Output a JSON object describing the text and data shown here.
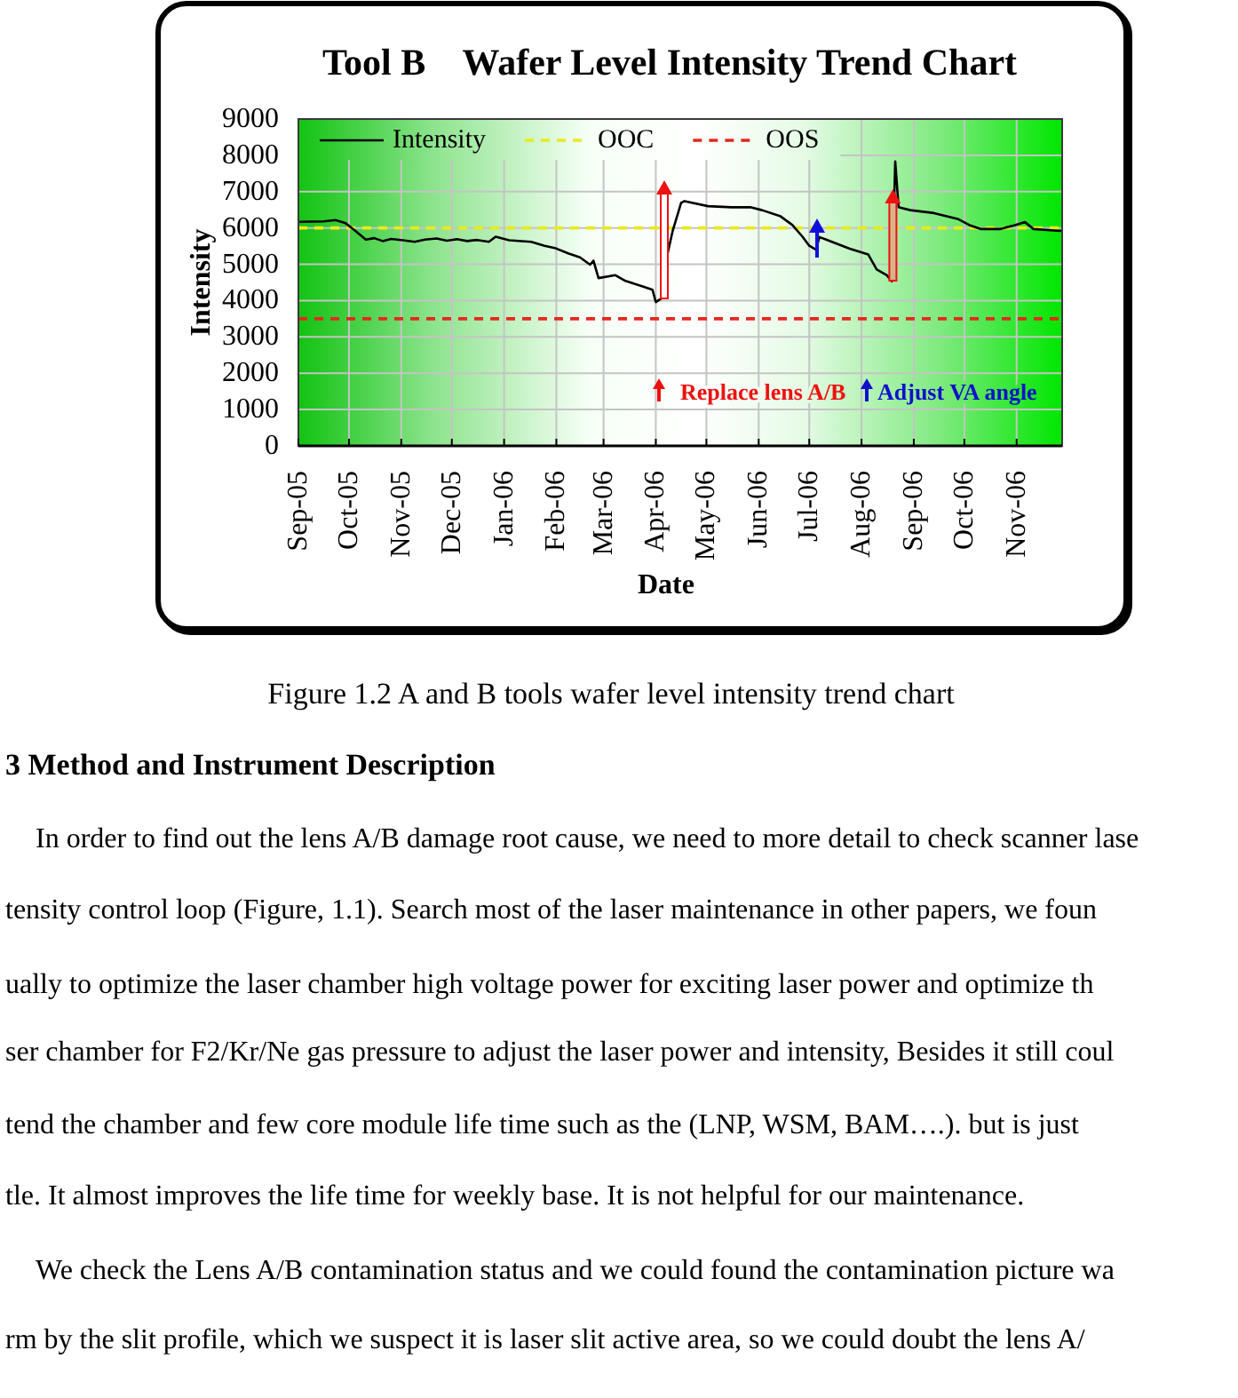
{
  "chart_data": {
    "type": "line",
    "title": "Tool B    Wafer Level Intensity Trend Chart",
    "xlabel": "Date",
    "ylabel": "Intensity",
    "xlim": [
      "2005-09-01",
      "2006-11-28"
    ],
    "xticks": [
      {
        "value": "2005-09-01",
        "label": "Sep-05"
      },
      {
        "value": "2005-10-01",
        "label": "Oct-05"
      },
      {
        "value": "2005-11-01",
        "label": "Nov-05"
      },
      {
        "value": "2005-12-01",
        "label": "Dec-05"
      },
      {
        "value": "2006-01-01",
        "label": "Jan-06"
      },
      {
        "value": "2006-02-01",
        "label": "Feb-06"
      },
      {
        "value": "2006-03-01",
        "label": "Mar-06"
      },
      {
        "value": "2006-04-01",
        "label": "Apr-06"
      },
      {
        "value": "2006-05-01",
        "label": "May-06"
      },
      {
        "value": "2006-06-01",
        "label": "Jun-06"
      },
      {
        "value": "2006-07-01",
        "label": "Jul-06"
      },
      {
        "value": "2006-08-01",
        "label": "Aug-06"
      },
      {
        "value": "2006-09-01",
        "label": "Sep-06"
      },
      {
        "value": "2006-10-01",
        "label": "Oct-06"
      },
      {
        "value": "2006-11-01",
        "label": "Nov-06"
      }
    ],
    "ylim": [
      0,
      9000
    ],
    "yticks": [
      0,
      1000,
      2000,
      3000,
      4000,
      5000,
      6000,
      7000,
      8000,
      9000
    ],
    "series": [
      {
        "name": "Intensity",
        "color": "#000000",
        "x": [
          "2005-09-02",
          "2005-09-16",
          "2005-09-23",
          "2005-09-29",
          "2005-10-04",
          "2005-10-11",
          "2005-10-16",
          "2005-10-21",
          "2005-10-26",
          "2005-11-02",
          "2005-11-09",
          "2005-11-15",
          "2005-11-22",
          "2005-11-28",
          "2005-12-04",
          "2005-12-10",
          "2005-12-16",
          "2005-12-23",
          "2005-12-27",
          "2006-01-04",
          "2006-01-17",
          "2006-01-25",
          "2006-01-31",
          "2006-02-08",
          "2006-02-15",
          "2006-02-21",
          "2006-02-23",
          "2006-02-26",
          "2006-03-08",
          "2006-03-14",
          "2006-03-25",
          "2006-03-30",
          "2006-04-01",
          "2006-04-04",
          "2006-04-07",
          "2006-04-08",
          "2006-04-11",
          "2006-04-16",
          "2006-04-18",
          "2006-05-02",
          "2006-05-16",
          "2006-05-27",
          "2006-06-03",
          "2006-06-14",
          "2006-06-21",
          "2006-06-27",
          "2006-07-01",
          "2006-07-05",
          "2006-07-07",
          "2006-07-11",
          "2006-07-25",
          "2006-08-05",
          "2006-08-10",
          "2006-08-16",
          "2006-08-19",
          "2006-08-21",
          "2006-08-23",
          "2006-08-30",
          "2006-09-13",
          "2006-09-27",
          "2006-10-04",
          "2006-10-11",
          "2006-10-22",
          "2006-10-31",
          "2006-11-06",
          "2006-11-11",
          "2006-11-27"
        ],
        "values": [
          6170,
          6180,
          6220,
          6130,
          5950,
          5680,
          5720,
          5640,
          5700,
          5660,
          5620,
          5680,
          5710,
          5650,
          5690,
          5640,
          5670,
          5620,
          5760,
          5660,
          5620,
          5510,
          5450,
          5300,
          5190,
          4990,
          5100,
          4620,
          4700,
          4540,
          4380,
          4300,
          3960,
          4050,
          6100,
          5300,
          5920,
          6690,
          6740,
          6600,
          6570,
          6570,
          6490,
          6320,
          6080,
          5760,
          5510,
          5400,
          5750,
          5680,
          5430,
          5270,
          4860,
          4700,
          4530,
          7830,
          6570,
          6490,
          6410,
          6250,
          6080,
          5970,
          5970,
          6080,
          6160,
          5970,
          5920
        ]
      }
    ],
    "ref_lines": [
      {
        "axis": "y",
        "value": 6000,
        "label": "OOC",
        "color": "#eaea1a",
        "line_style": "dashed"
      },
      {
        "axis": "y",
        "value": 3500,
        "label": "OOS",
        "color": "#e5281e",
        "line_style": "dashed"
      }
    ],
    "grid": true,
    "legend": "top left",
    "annotations": [
      "Replace lens A/B",
      "Adjust VA angle",
      "Figure 1.2 A and B tools wafer level intensity trend chart",
      "3 Method and Instrument Description",
      "In order to find out the lens A/B damage root cause, we need to more detail to check scanner lase",
      "tensity control loop (Figure, 1.1). Search most of the laser maintenance in other papers, we foun",
      "ually to optimize the laser chamber high voltage power for exciting laser power and optimize th",
      "ser chamber for F2/Kr/Ne gas pressure to adjust the laser power and intensity, Besides it still coul",
      "tend the chamber and few core module life time such as the (LNP, WSM, BAM….). but is just",
      "tle. It almost improves the life time for weekly base. It is not helpful for our maintenance.",
      "We check the Lens A/B contamination status and we could found the contamination picture wa",
      "rm by the slit profile, which we suspect it is laser slit active area, so we could doubt the lens A/"
    ]
  }
}
